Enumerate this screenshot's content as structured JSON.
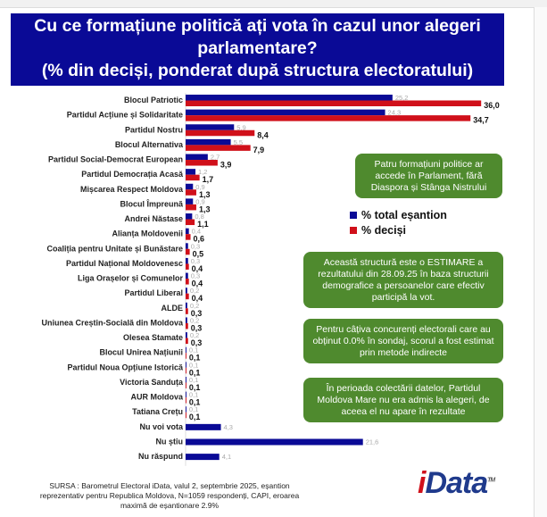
{
  "title": {
    "line1": "Cu ce formațiune politică ați vota în cazul unor alegeri",
    "line2": "parlamentare?",
    "line3": "(% din deciși, ponderat după structura electoratului)"
  },
  "chart_data": {
    "type": "bar",
    "orientation": "horizontal",
    "categories": [
      "Blocul Patriotic",
      "Partidul Acțiune și Solidaritate",
      "Partidul Nostru",
      "Blocul Alternativa",
      "Partidul Social-Democrat European",
      "Partidul Democrația Acasă",
      "Mișcarea Respect Moldova",
      "Blocul Împreună",
      "Andrei Năstase",
      "Alianța Moldovenii",
      "Coaliția pentru Unitate și Bunăstare",
      "Partidul Național Moldovenesc",
      "Liga Orașelor și Comunelor",
      "Partidul Liberal",
      "ALDE",
      "Uniunea Creștin-Socială din Moldova",
      "Olesea Stamate",
      "Blocul Unirea Națiunii",
      "Partidul Noua Opțiune Istorică",
      "Victoria Sanduța",
      "AUR Moldova",
      "Tatiana Crețu",
      "Nu voi vota",
      "Nu știu",
      "Nu răspund"
    ],
    "series": [
      {
        "name": "% total eșantion",
        "color": "#0a0a96",
        "values": [
          25.2,
          24.3,
          5.9,
          5.5,
          2.7,
          1.2,
          0.9,
          0.9,
          0.8,
          0.4,
          0.3,
          0.3,
          0.3,
          0.2,
          0.2,
          0.2,
          0.2,
          0.1,
          0.1,
          0.1,
          0.1,
          0.1,
          4.3,
          21.6,
          4.1
        ],
        "labels": [
          "25,2",
          "24,3",
          "5,9",
          "5,5",
          "2,7",
          "1,2",
          "0,9",
          "0,9",
          "0,8",
          "0,4",
          "0,3",
          "0,3",
          "0,3",
          "0,2",
          "0,2",
          "0,2",
          "0,2",
          "0,1",
          "0,1",
          "0,1",
          "0,1",
          "0,1",
          "4,3",
          "21,6",
          "4,1"
        ]
      },
      {
        "name": "% deciși",
        "color": "#d0101a",
        "values": [
          36.0,
          34.7,
          8.4,
          7.9,
          3.9,
          1.7,
          1.3,
          1.3,
          1.1,
          0.6,
          0.5,
          0.4,
          0.4,
          0.4,
          0.3,
          0.3,
          0.3,
          0.1,
          0.1,
          0.1,
          0.1,
          0.1,
          null,
          null,
          null
        ],
        "labels": [
          "36,0",
          "34,7",
          "8,4",
          "7,9",
          "3,9",
          "1,7",
          "1,3",
          "1,3",
          "1,1",
          "0,6",
          "0,5",
          "0,4",
          "0,4",
          "0,4",
          "0,3",
          "0,3",
          "0,3",
          "0,1",
          "0,1",
          "0,1",
          "0,1",
          "0,1",
          "",
          "",
          ""
        ]
      }
    ],
    "legend_placement": "right",
    "grid": false
  },
  "legend": {
    "sample": "% total eșantion",
    "decided": "% deciși"
  },
  "notes": [
    "Patru formațiuni politice ar accede în Parlament, fără Diaspora și Stânga Nistrului",
    "Această structură este o ESTIMARE a rezultatului din 28.09.25 în baza structurii demografice a persoanelor care efectiv participă la vot.",
    "Pentru câțiva concurenți electorali care au obținut 0.0% în sondaj, scorul a fost estimat prin metode indirecte",
    "În perioada colectării datelor, Partidul Moldova Mare nu era admis la alegeri, de aceea el nu apare în rezultate"
  ],
  "source": "SURSA : Barometrul Electoral iData, valul 2, septembrie 2025, eșantion reprezentativ pentru Republica Moldova, N=1059 respondenți, CAPI, eroarea maximă de eșantionare 2.9%",
  "logo": "iData"
}
